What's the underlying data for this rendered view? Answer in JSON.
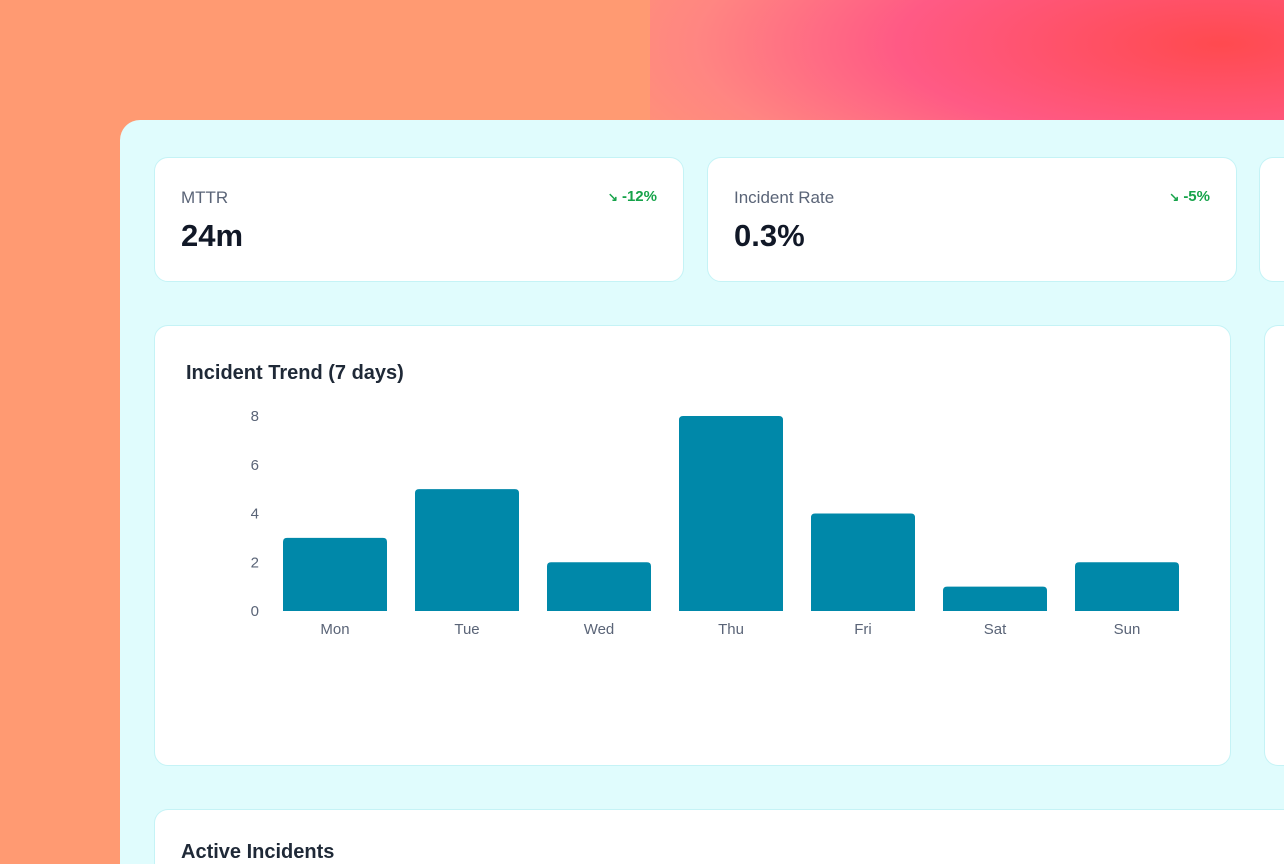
{
  "kpis": [
    {
      "label": "MTTR",
      "value": "24m",
      "delta": "-12%",
      "trend_icon": "trending-down-icon"
    },
    {
      "label": "Incident Rate",
      "value": "0.3%",
      "delta": "-5%",
      "trend_icon": "trending-down-icon"
    }
  ],
  "trend_card": {
    "title": "Incident Trend (7 days)"
  },
  "incidents_card": {
    "title": "Active Incidents"
  },
  "colors": {
    "bar": "#0088a9",
    "positive": "#16a34a",
    "panel": "#e0fcfd"
  },
  "chart_data": {
    "type": "bar",
    "title": "Incident Trend (7 days)",
    "categories": [
      "Mon",
      "Tue",
      "Wed",
      "Thu",
      "Fri",
      "Sat",
      "Sun"
    ],
    "values": [
      3,
      5,
      2,
      8,
      4,
      1,
      2
    ],
    "yticks": [
      0,
      2,
      4,
      6,
      8
    ],
    "ylim": [
      0,
      8
    ],
    "grid": false,
    "xlabel": "",
    "ylabel": ""
  }
}
